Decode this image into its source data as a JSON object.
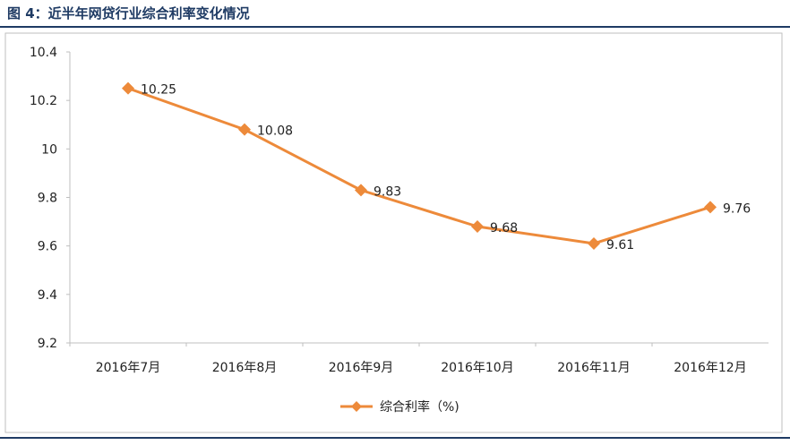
{
  "figure": {
    "title": "图 4：近半年网贷行业综合利率变化情况"
  },
  "colors": {
    "accent": "#ED8A3A",
    "rule": "#1F3B64",
    "frame": "#BFBFBF"
  },
  "chart_data": {
    "type": "line",
    "categories": [
      "2016年7月",
      "2016年8月",
      "2016年9月",
      "2016年10月",
      "2016年11月",
      "2016年12月"
    ],
    "series": [
      {
        "name": "综合利率（%)",
        "values": [
          10.25,
          10.08,
          9.83,
          9.68,
          9.61,
          9.76
        ]
      }
    ],
    "data_labels": [
      "10.25",
      "10.08",
      "9.83",
      "9.68",
      "9.61",
      "9.76"
    ],
    "ylim": [
      9.2,
      10.4
    ],
    "yticks": [
      9.2,
      9.4,
      9.6,
      9.8,
      10,
      10.2,
      10.4
    ],
    "ytick_labels": [
      "9.2",
      "9.4",
      "9.6",
      "9.8",
      "10",
      "10.2",
      "10.4"
    ],
    "grid": false,
    "legend_position": "bottom",
    "marker": "diamond"
  }
}
